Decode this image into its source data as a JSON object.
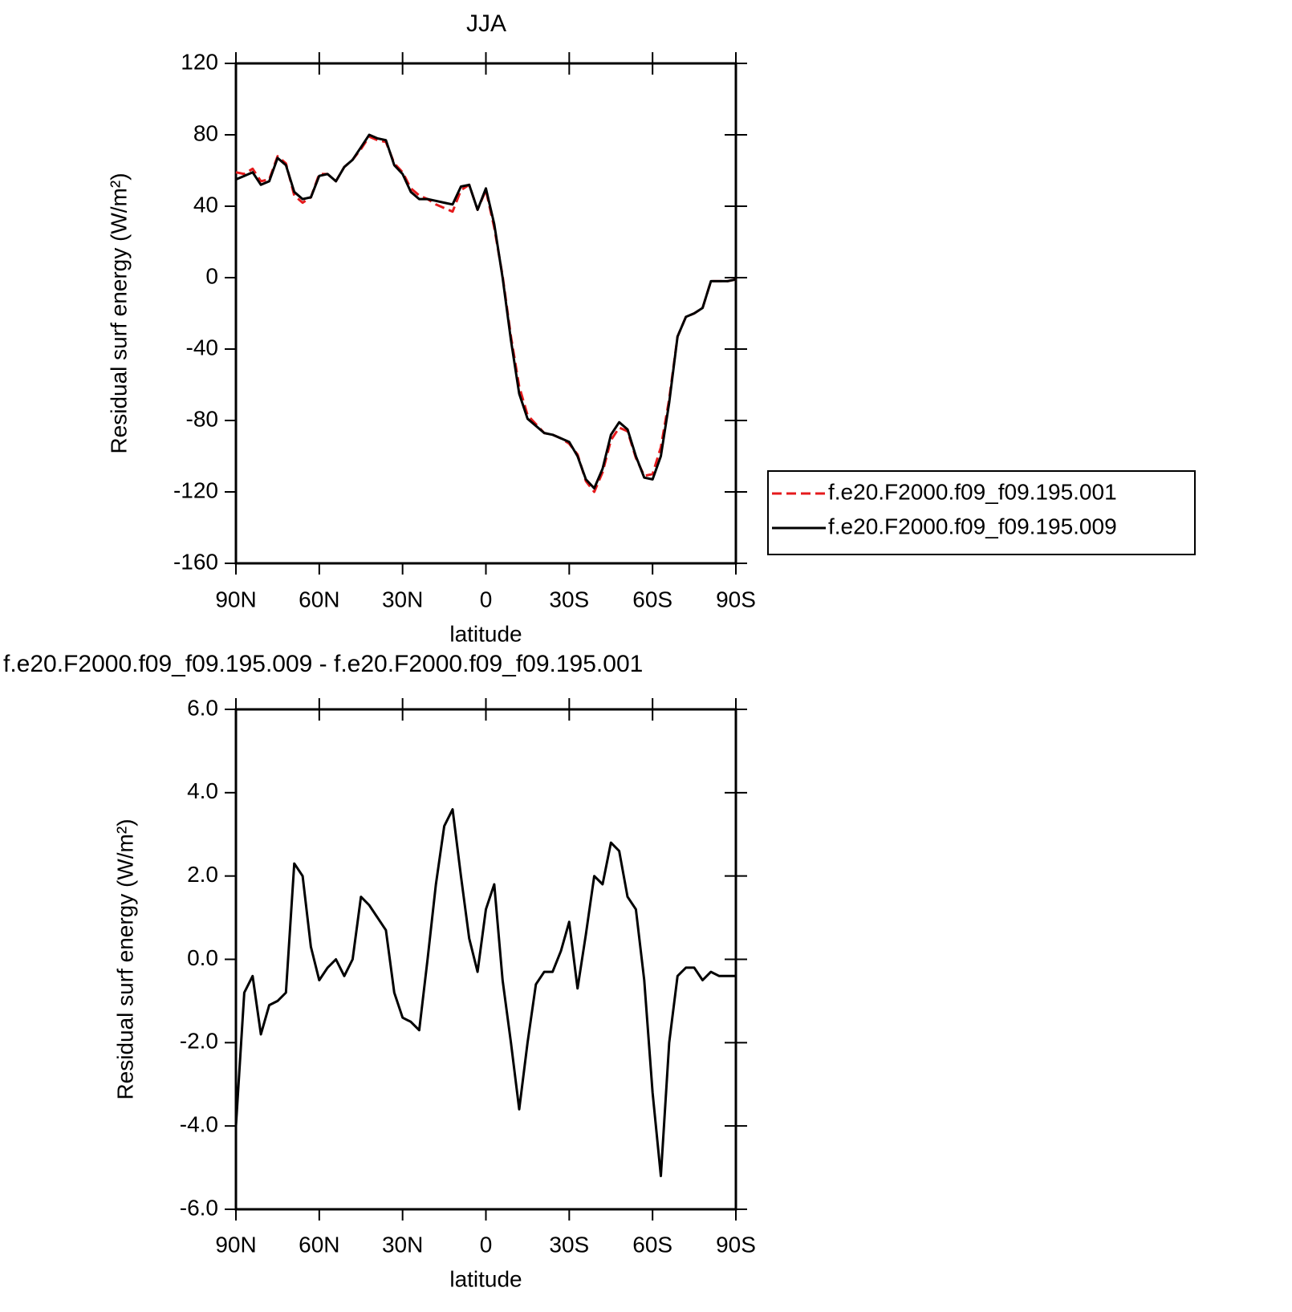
{
  "chart_data": [
    {
      "type": "line",
      "title": "JJA",
      "xlabel": "latitude",
      "ylabel": "Residual surf energy (W/m²)",
      "x": [
        90,
        87,
        84,
        81,
        78,
        75,
        72,
        69,
        66,
        63,
        60,
        57,
        54,
        51,
        48,
        45,
        42,
        39,
        36,
        33,
        30,
        27,
        24,
        21,
        18,
        15,
        12,
        9,
        6,
        3,
        0,
        -3,
        -6,
        -9,
        -12,
        -15,
        -18,
        -21,
        -24,
        -27,
        -30,
        -33,
        -36,
        -39,
        -42,
        -45,
        -48,
        -51,
        -54,
        -57,
        -60,
        -63,
        -66,
        -69,
        -72,
        -75,
        -78,
        -81,
        -84,
        -87,
        -90
      ],
      "xlim": [
        90,
        -90
      ],
      "xticks": [
        {
          "value": 90,
          "label": "90N"
        },
        {
          "value": 60,
          "label": "60N"
        },
        {
          "value": 30,
          "label": "30N"
        },
        0,
        {
          "value": -30,
          "label": "30S"
        },
        {
          "value": -60,
          "label": "60S"
        },
        {
          "value": -90,
          "label": "90S"
        }
      ],
      "ylim": [
        -160,
        120
      ],
      "yticks": [
        -160,
        -120,
        -80,
        -40,
        0,
        40,
        80,
        120
      ],
      "legend": "right",
      "series": [
        {
          "name": "f.e20.F2000.f09_f09.195.001",
          "color": "#e41a1c",
          "style": "dashed",
          "values": [
            59,
            58,
            61,
            54,
            55,
            68,
            64,
            46,
            42,
            45,
            58,
            58,
            54,
            62,
            66,
            72,
            79,
            77,
            76,
            64,
            59,
            50,
            46,
            44,
            41,
            39,
            37,
            49,
            52,
            38,
            49,
            28,
            1,
            -33,
            -61,
            -77,
            -82,
            -87,
            -88,
            -90,
            -93,
            -99,
            -114,
            -120,
            -109,
            -91,
            -84,
            -86,
            -101,
            -111,
            -110,
            -95,
            -68,
            -33,
            -22,
            -20,
            -17,
            -2,
            -2,
            -2,
            -1
          ]
        },
        {
          "name": "f.e20.F2000.f09_f09.195.009",
          "color": "#000000",
          "style": "solid",
          "values": [
            55,
            57,
            59,
            52,
            54,
            67,
            63,
            48,
            44,
            45,
            57,
            58,
            54,
            62,
            66,
            73,
            80,
            78,
            77,
            63,
            58,
            48,
            44,
            44,
            43,
            42,
            41,
            51,
            52,
            38,
            50,
            30,
            0,
            -35,
            -65,
            -79,
            -83,
            -87,
            -88,
            -90,
            -92,
            -100,
            -113,
            -118,
            -107,
            -88,
            -81,
            -85,
            -100,
            -112,
            -113,
            -100,
            -70,
            -33,
            -22,
            -20,
            -17,
            -2,
            -2,
            -2,
            -1
          ]
        }
      ]
    },
    {
      "type": "line",
      "title": "f.e20.F2000.f09_f09.195.009 - f.e20.F2000.f09_f09.195.001",
      "xlabel": "latitude",
      "ylabel": "Residual surf energy (W/m²)",
      "x": [
        90,
        87,
        84,
        81,
        78,
        75,
        72,
        69,
        66,
        63,
        60,
        57,
        54,
        51,
        48,
        45,
        42,
        39,
        36,
        33,
        30,
        27,
        24,
        21,
        18,
        15,
        12,
        9,
        6,
        3,
        0,
        -3,
        -6,
        -9,
        -12,
        -15,
        -18,
        -21,
        -24,
        -27,
        -30,
        -33,
        -36,
        -39,
        -42,
        -45,
        -48,
        -51,
        -54,
        -57,
        -60,
        -63,
        -66,
        -69,
        -72,
        -75,
        -78,
        -81,
        -84,
        -87,
        -90
      ],
      "xlim": [
        90,
        -90
      ],
      "xticks": [
        {
          "value": 90,
          "label": "90N"
        },
        {
          "value": 60,
          "label": "60N"
        },
        {
          "value": 30,
          "label": "30N"
        },
        0,
        {
          "value": -30,
          "label": "30S"
        },
        {
          "value": -60,
          "label": "60S"
        },
        {
          "value": -90,
          "label": "90S"
        }
      ],
      "ylim": [
        -6,
        6
      ],
      "yticks": [
        {
          "value": -6,
          "label": "-6.0"
        },
        {
          "value": -4,
          "label": "-4.0"
        },
        {
          "value": -2,
          "label": "-2.0"
        },
        {
          "value": 0,
          "label": "0.0"
        },
        {
          "value": 2,
          "label": "2.0"
        },
        {
          "value": 4,
          "label": "4.0"
        },
        {
          "value": 6,
          "label": "6.0"
        }
      ],
      "color": "#000000",
      "values": [
        -4,
        -0.8,
        -0.4,
        -1.8,
        -1.1,
        -1.0,
        -0.8,
        2.3,
        2.0,
        0.3,
        -0.5,
        -0.2,
        0.0,
        -0.4,
        0.0,
        1.5,
        1.3,
        1.0,
        0.7,
        -0.8,
        -1.4,
        -1.5,
        -1.7,
        0.0,
        1.8,
        3.2,
        3.6,
        2.0,
        0.5,
        -0.3,
        1.2,
        1.8,
        -0.5,
        -2.0,
        -3.6,
        -2.0,
        -0.6,
        -0.3,
        -0.3,
        0.2,
        0.9,
        -0.7,
        0.6,
        2.0,
        1.8,
        2.8,
        2.6,
        1.5,
        1.2,
        -0.5,
        -3.2,
        -5.2,
        -2.0,
        -0.4,
        -0.2,
        -0.2,
        -0.5,
        -0.3,
        -0.4,
        -0.4,
        -0.4
      ]
    }
  ]
}
